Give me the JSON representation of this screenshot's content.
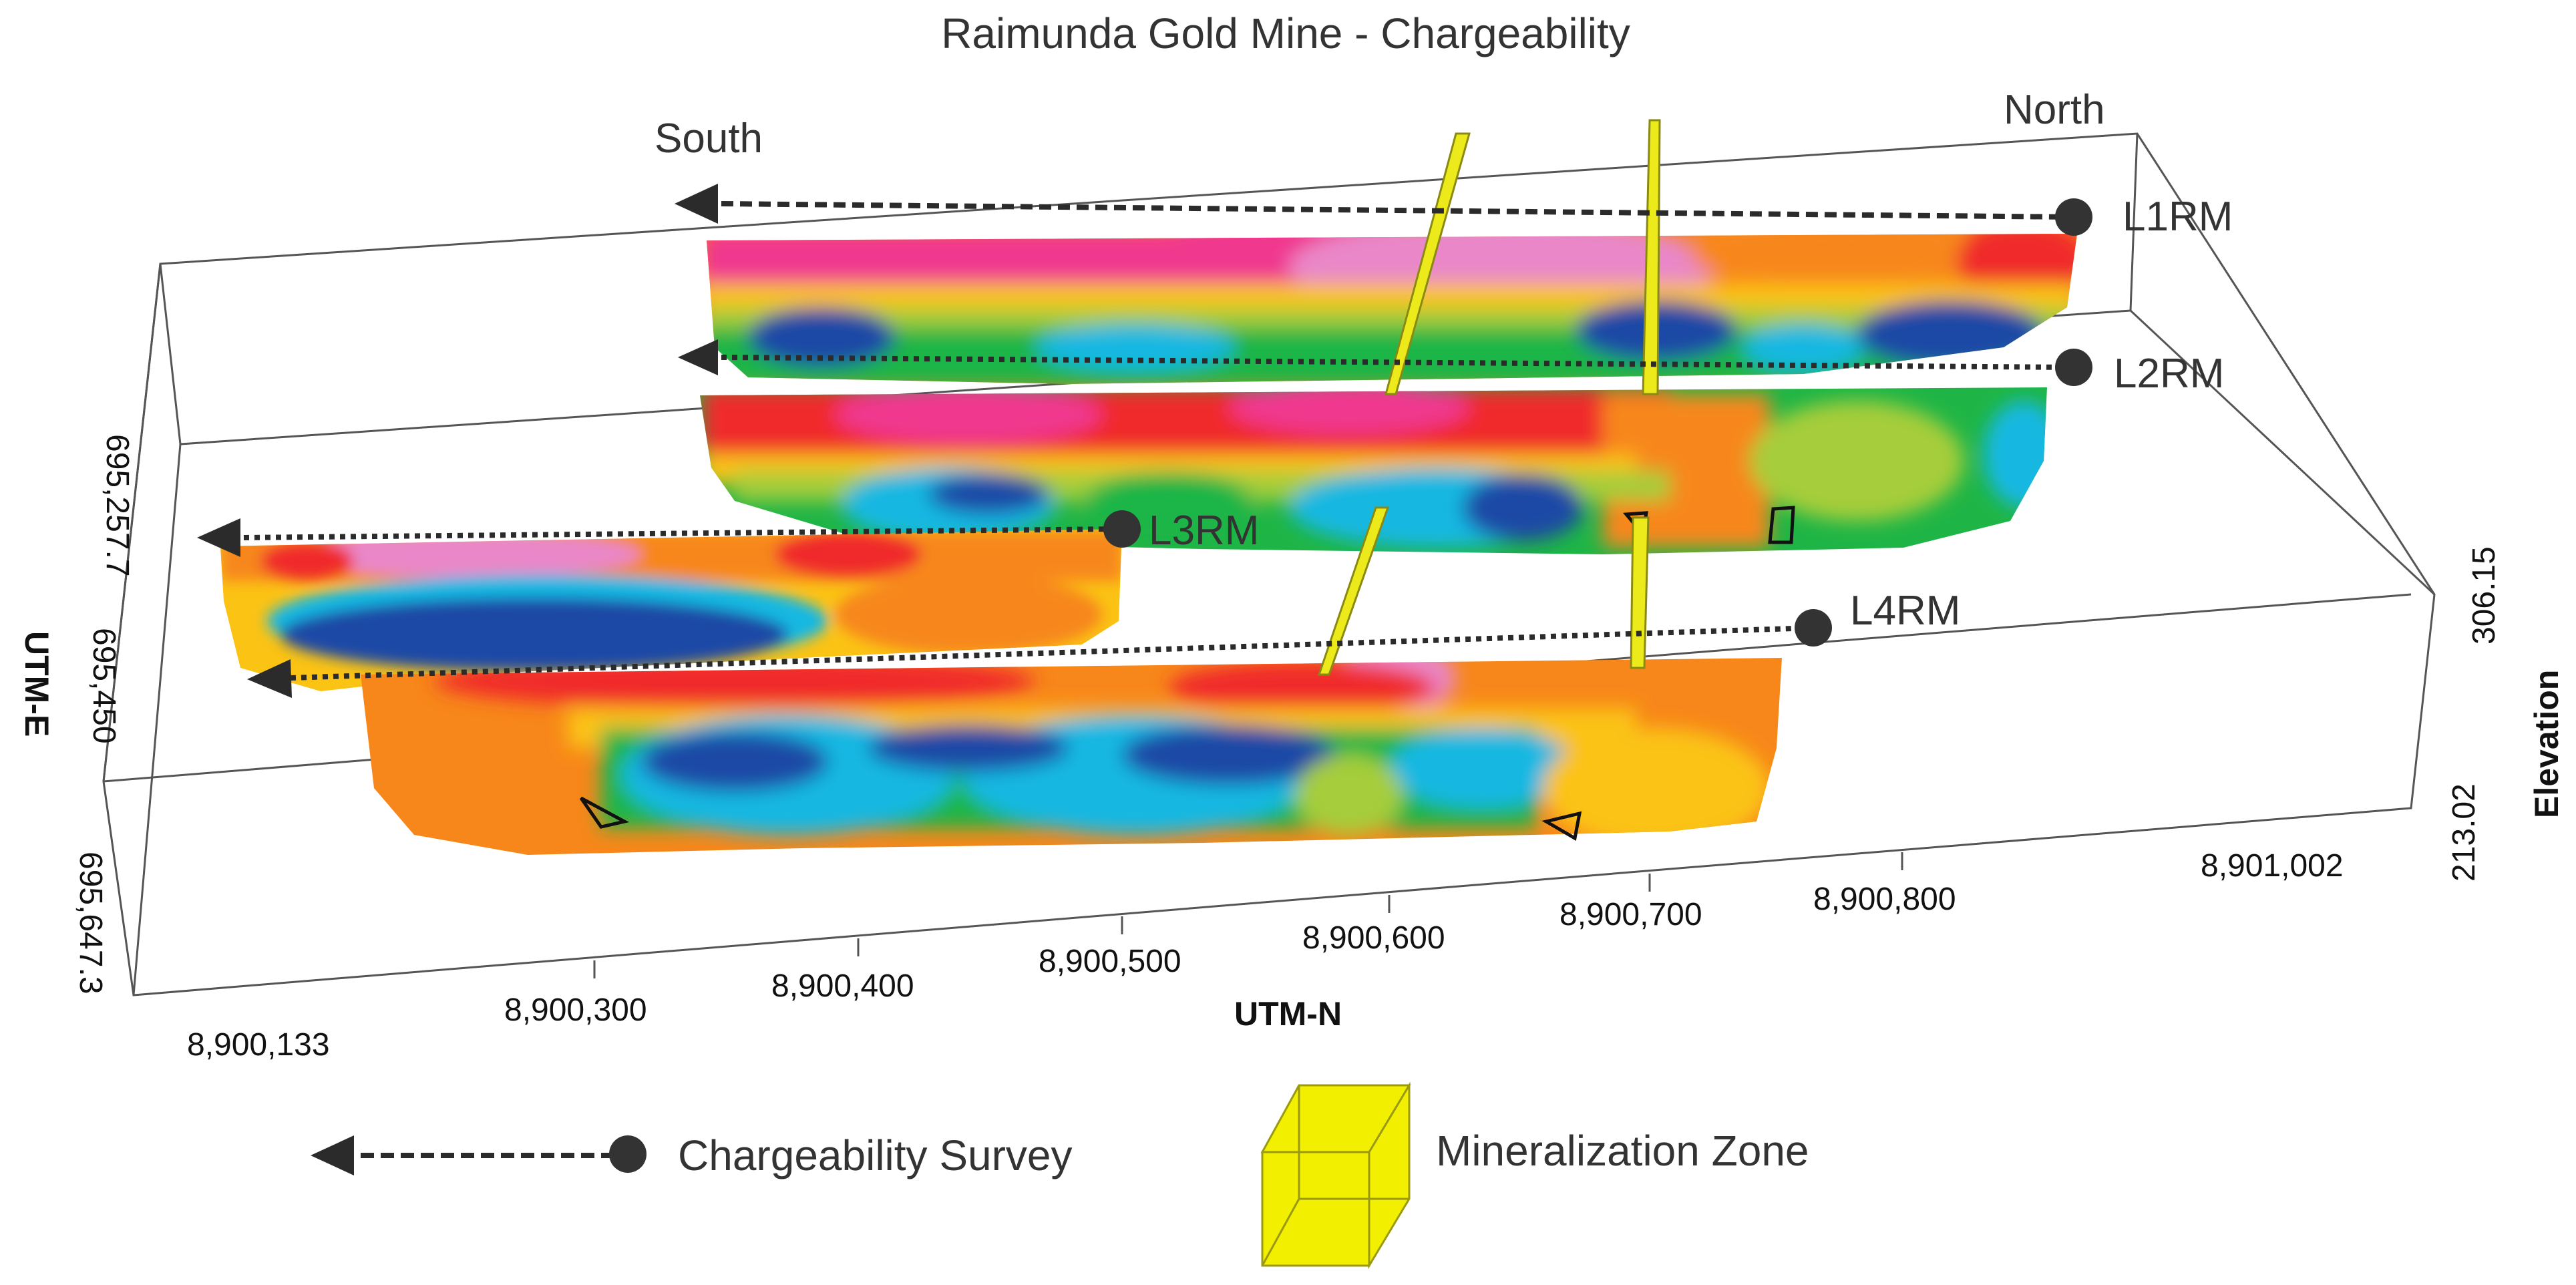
{
  "title": "Raimunda Gold Mine - Chargeability",
  "directions": {
    "south": "South",
    "north": "North"
  },
  "survey_lines": [
    {
      "id": "L1RM",
      "label": "L1RM"
    },
    {
      "id": "L2RM",
      "label": "L2RM"
    },
    {
      "id": "L3RM",
      "label": "L3RM"
    },
    {
      "id": "L4RM",
      "label": "L4RM"
    }
  ],
  "axes": {
    "utm_n": {
      "title": "UTM-N",
      "ticks": [
        "8,900,133",
        "8,900,300",
        "8,900,400",
        "8,900,500",
        "8,900,600",
        "8,900,700",
        "8,900,800",
        "8,901,002"
      ]
    },
    "utm_e": {
      "title": "UTM-E",
      "ticks": [
        "695,257.7",
        "695,450",
        "695,647.3"
      ]
    },
    "elevation": {
      "title": "Elevation",
      "ticks": [
        "306.15",
        "213.02"
      ]
    }
  },
  "legend": {
    "survey_label": "Chargeability Survey",
    "zone_label": "Mineralization Zone"
  },
  "colors": {
    "very_high": "#e987c8",
    "high_magenta": "#f0388f",
    "red": "#f02a2a",
    "orange": "#f7871a",
    "yellow_orange": "#fbc314",
    "yellow_green": "#a6cd3a",
    "green": "#1fb546",
    "cyan": "#19b8e2",
    "blue": "#1e4aa6",
    "zone_yellow": "#ecea1a",
    "marker": "#333333"
  }
}
